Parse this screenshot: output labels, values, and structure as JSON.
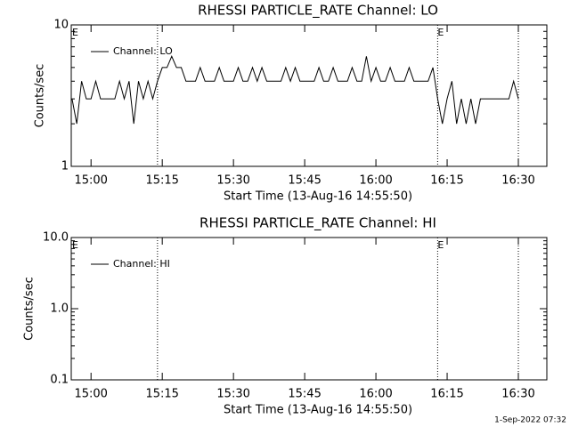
{
  "chart_data": [
    {
      "type": "line",
      "title": "RHESSI PARTICLE_RATE Channel: LO",
      "xlabel": "Start Time (13-Aug-16 14:55:50)",
      "ylabel": "Counts/sec",
      "log_y": true,
      "ylim": [
        1,
        10
      ],
      "yticks": [
        1,
        10
      ],
      "xlim": [
        "14:55:50",
        "16:36"
      ],
      "xticks": [
        "15:00",
        "15:15",
        "15:30",
        "15:45",
        "16:00",
        "16:15",
        "16:30"
      ],
      "vlines": [
        "15:14",
        "16:13",
        "16:30"
      ],
      "annotations": [
        {
          "text": "E",
          "x": "14:56"
        },
        {
          "text": "E",
          "x": "16:13"
        }
      ],
      "x": [
        "14:56",
        "14:57",
        "14:58",
        "14:59",
        "15:00",
        "15:01",
        "15:02",
        "15:03",
        "15:04",
        "15:05",
        "15:06",
        "15:07",
        "15:08",
        "15:09",
        "15:10",
        "15:11",
        "15:12",
        "15:13",
        "15:14",
        "15:15",
        "15:16",
        "15:17",
        "15:18",
        "15:19",
        "15:20",
        "15:21",
        "15:22",
        "15:23",
        "15:24",
        "15:25",
        "15:26",
        "15:27",
        "15:28",
        "15:29",
        "15:30",
        "15:31",
        "15:32",
        "15:33",
        "15:34",
        "15:35",
        "15:36",
        "15:37",
        "15:38",
        "15:39",
        "15:40",
        "15:41",
        "15:42",
        "15:43",
        "15:44",
        "15:45",
        "15:46",
        "15:47",
        "15:48",
        "15:49",
        "15:50",
        "15:51",
        "15:52",
        "15:53",
        "15:54",
        "15:55",
        "15:56",
        "15:57",
        "15:58",
        "15:59",
        "16:00",
        "16:01",
        "16:02",
        "16:03",
        "16:04",
        "16:05",
        "16:06",
        "16:07",
        "16:08",
        "16:09",
        "16:10",
        "16:11",
        "16:12",
        "16:13",
        "16:14",
        "16:15",
        "16:16",
        "16:17",
        "16:18",
        "16:19",
        "16:20",
        "16:21",
        "16:22",
        "16:23",
        "16:24",
        "16:25",
        "16:26",
        "16:27",
        "16:28",
        "16:29",
        "16:30"
      ],
      "series": [
        {
          "name": "Channel: LO",
          "color": "#000000",
          "values": [
            3,
            2,
            4,
            3,
            3,
            4,
            3,
            3,
            3,
            3,
            4,
            3,
            4,
            2,
            4,
            3,
            4,
            3,
            4,
            5,
            5,
            6,
            5,
            5,
            4,
            4,
            4,
            5,
            4,
            4,
            4,
            5,
            4,
            4,
            4,
            5,
            4,
            4,
            5,
            4,
            5,
            4,
            4,
            4,
            4,
            5,
            4,
            5,
            4,
            4,
            4,
            4,
            5,
            4,
            4,
            5,
            4,
            4,
            4,
            5,
            4,
            4,
            6,
            4,
            5,
            4,
            4,
            5,
            4,
            4,
            4,
            5,
            4,
            4,
            4,
            4,
            5,
            3,
            2,
            3,
            4,
            2,
            3,
            2,
            3,
            2,
            3,
            3,
            3,
            3,
            3,
            3,
            3,
            4,
            3
          ]
        }
      ]
    },
    {
      "type": "line",
      "title": "RHESSI PARTICLE_RATE Channel: HI",
      "xlabel": "Start Time (13-Aug-16 14:55:50)",
      "ylabel": "Counts/sec",
      "log_y": true,
      "ylim": [
        0.1,
        10
      ],
      "yticks": [
        0.1,
        {
          "value": 1,
          "label": "1.0"
        },
        {
          "value": 10,
          "label": "10.0"
        }
      ],
      "xlim": [
        "14:55:50",
        "16:36"
      ],
      "xticks": [
        "15:00",
        "15:15",
        "15:30",
        "15:45",
        "16:00",
        "16:15",
        "16:30"
      ],
      "vlines": [
        "15:14",
        "16:13",
        "16:30"
      ],
      "annotations": [
        {
          "text": "E",
          "x": "14:56"
        },
        {
          "text": "E",
          "x": "16:13"
        }
      ],
      "x": [],
      "series": [
        {
          "name": "Channel: HI",
          "color": "#000000",
          "values": []
        }
      ]
    }
  ],
  "footer": "1-Sep-2022 07:32"
}
